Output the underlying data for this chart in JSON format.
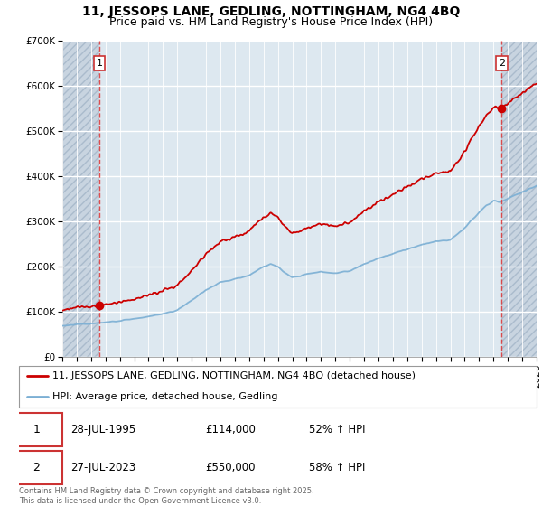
{
  "title": "11, JESSOPS LANE, GEDLING, NOTTINGHAM, NG4 4BQ",
  "subtitle": "Price paid vs. HM Land Registry's House Price Index (HPI)",
  "ylim": [
    0,
    700000
  ],
  "yticks": [
    0,
    100000,
    200000,
    300000,
    400000,
    500000,
    600000,
    700000
  ],
  "ytick_labels": [
    "£0",
    "£100K",
    "£200K",
    "£300K",
    "£400K",
    "£500K",
    "£600K",
    "£700K"
  ],
  "xlim_start": 1993,
  "xlim_end": 2026.0,
  "sale1_year": 1995.57,
  "sale1_price": 114000,
  "sale2_year": 2023.57,
  "sale2_price": 550000,
  "red_line_color": "#cc0000",
  "blue_line_color": "#7bafd4",
  "background_color": "#dde8f0",
  "hatch_bg_color": "#c8d4e0",
  "grid_color": "#ffffff",
  "legend_label_red": "11, JESSOPS LANE, GEDLING, NOTTINGHAM, NG4 4BQ (detached house)",
  "legend_label_blue": "HPI: Average price, detached house, Gedling",
  "ann1_date": "28-JUL-1995",
  "ann1_price": "£114,000",
  "ann1_hpi": "52% ↑ HPI",
  "ann2_date": "27-JUL-2023",
  "ann2_price": "£550,000",
  "ann2_hpi": "58% ↑ HPI",
  "footer": "Contains HM Land Registry data © Crown copyright and database right 2025.\nThis data is licensed under the Open Government Licence v3.0.",
  "title_fontsize": 10,
  "subtitle_fontsize": 9,
  "tick_fontsize": 7.5,
  "legend_fontsize": 8
}
